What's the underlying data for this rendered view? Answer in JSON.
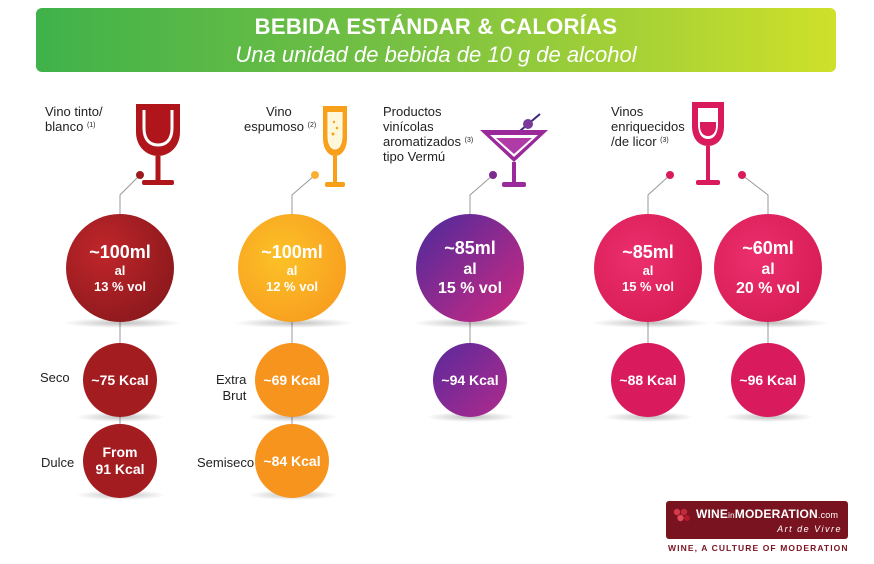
{
  "header": {
    "title": "BEBIDA ESTÁNDAR & CALORÍAS",
    "subtitle": "Una unidad de bebida de 10 g de alcohol"
  },
  "drinks": {
    "wine": {
      "name_line1": "Vino tinto/",
      "name_line2": "blanco",
      "note": "(1)",
      "volume": "~100ml",
      "al": "al",
      "abv": "13 % vol",
      "dry_label": "Seco",
      "dry_kcal": "~75 Kcal",
      "sweet_label": "Dulce",
      "sweet_kcal_line1": "From",
      "sweet_kcal_line2": "91 Kcal",
      "color": "#9b1c1f"
    },
    "sparkling": {
      "name_line1": "Vino",
      "name_line2": "espumoso",
      "note": "(2)",
      "volume": "~100ml",
      "al": "al",
      "abv": "12 % vol",
      "extra_brut_line1": "Extra",
      "extra_brut_line2": "Brut",
      "extra_brut_kcal": "~69 Kcal",
      "semiseco_label": "Semiseco",
      "semiseco_kcal": "~84 Kcal",
      "color": "#f7941d"
    },
    "aromatized": {
      "name_line1": "Productos",
      "name_line2": "vinícolas",
      "name_line3": "aromatizados",
      "name_line4": "tipo Vermú",
      "note": "(3)",
      "volume": "~85ml",
      "al": "al",
      "abv": "15 % vol",
      "kcal": "~94 Kcal",
      "color": "#8e2a8f"
    },
    "fortified": {
      "name_line1": "Vinos",
      "name_line2": "enriquecidos",
      "name_line3": "/de licor",
      "note": "(3)",
      "a_volume": "~85ml",
      "a_al": "al",
      "a_abv": "15 % vol",
      "a_kcal": "~88 Kcal",
      "b_volume": "~60ml",
      "b_al": "al",
      "b_abv": "20 % vol",
      "b_kcal": "~96 Kcal",
      "color": "#d91a5c"
    }
  },
  "logo": {
    "wine": "WINE",
    "in": "in",
    "moderation": "MODERATION",
    "com": ".com",
    "tagline": "Art de Vivre",
    "sub": "WINE, A CULTURE OF MODERATION"
  }
}
